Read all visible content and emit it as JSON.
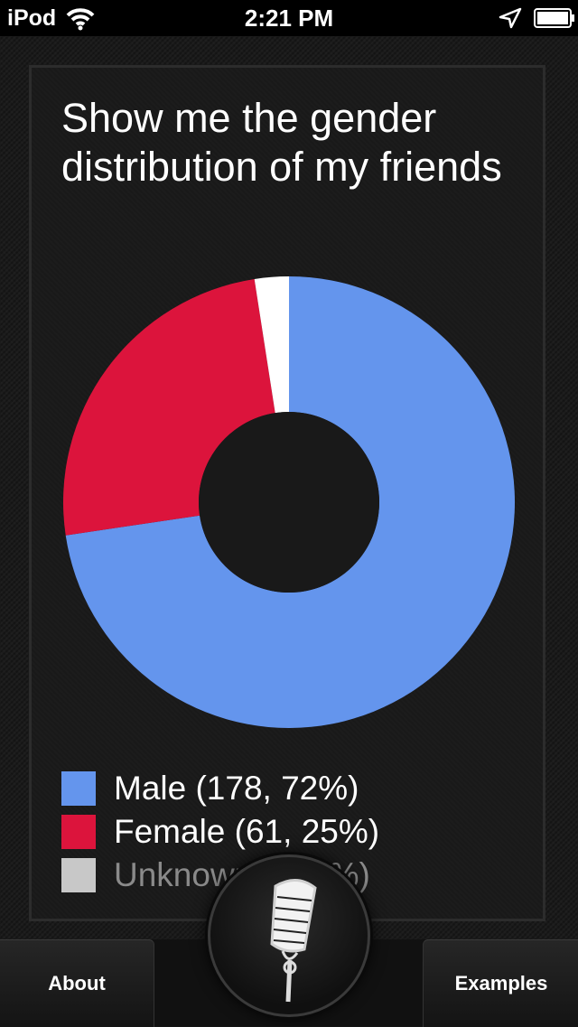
{
  "status_bar": {
    "carrier": "iPod",
    "time": "2:21 PM",
    "icons": [
      "wifi-icon",
      "location-arrow-icon",
      "battery-icon"
    ]
  },
  "query": {
    "text": "Show me the gender distribution of my friends"
  },
  "chart_data": {
    "type": "pie",
    "donut": true,
    "categories": [
      "Male",
      "Female",
      "Unknown"
    ],
    "values": [
      178,
      61,
      6
    ],
    "colors": [
      "#6495ED",
      "#DC143C",
      "#FFFFFF"
    ],
    "legend": [
      {
        "label": "Male (178, 72%)",
        "color": "#6495ED"
      },
      {
        "label": "Female (61, 25%)",
        "color": "#DC143C"
      },
      {
        "label": "Unknown (6, 2%)",
        "color": "#C8C8C8"
      }
    ]
  },
  "tab_bar": {
    "about_label": "About",
    "examples_label": "Examples",
    "mic_icon": "microphone-icon"
  }
}
